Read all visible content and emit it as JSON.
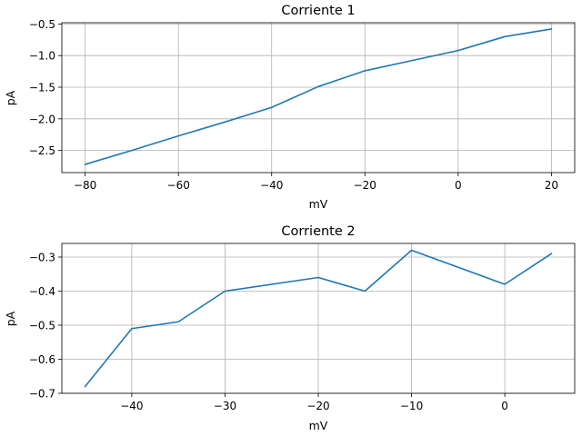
{
  "chart_data": [
    {
      "type": "line",
      "title": "Corriente 1",
      "xlabel": "mV",
      "ylabel": "pA",
      "xlim": [
        -85,
        25
      ],
      "ylim": [
        -2.85,
        -0.48
      ],
      "xticks": [
        -80,
        -60,
        -40,
        -20,
        0,
        20
      ],
      "xtick_labels": [
        "−80",
        "−60",
        "−40",
        "−20",
        "0",
        "20"
      ],
      "yticks": [
        -2.5,
        -2.0,
        -1.5,
        -1.0,
        -0.5
      ],
      "ytick_labels": [
        "−2.5",
        "−2.0",
        "−1.5",
        "−1.0",
        "−0.5"
      ],
      "grid": true,
      "color": "#1f77b4",
      "series": [
        {
          "x": [
            -80,
            -70,
            -60,
            -50,
            -40,
            -30,
            -20,
            -10,
            0,
            10,
            20
          ],
          "y": [
            -2.72,
            -2.5,
            -2.27,
            -2.05,
            -1.82,
            -1.49,
            -1.24,
            -1.08,
            -0.92,
            -0.7,
            -0.58
          ]
        }
      ]
    },
    {
      "type": "line",
      "title": "Corriente 2",
      "xlabel": "mV",
      "ylabel": "pA",
      "xlim": [
        -47.5,
        7.5
      ],
      "ylim": [
        -0.7,
        -0.26
      ],
      "xticks": [
        -40,
        -30,
        -20,
        -10,
        0
      ],
      "xtick_labels": [
        "−40",
        "−30",
        "−20",
        "−10",
        "0"
      ],
      "yticks": [
        -0.7,
        -0.6,
        -0.5,
        -0.4,
        -0.3
      ],
      "ytick_labels": [
        "−0.7",
        "−0.6",
        "−0.5",
        "−0.4",
        "−0.3"
      ],
      "grid": true,
      "color": "#1f77b4",
      "series": [
        {
          "x": [
            -45,
            -40,
            -35,
            -30,
            -20,
            -15,
            -10,
            0,
            5
          ],
          "y": [
            -0.68,
            -0.51,
            -0.49,
            -0.4,
            -0.36,
            -0.4,
            -0.28,
            -0.38,
            -0.29
          ]
        }
      ]
    }
  ]
}
